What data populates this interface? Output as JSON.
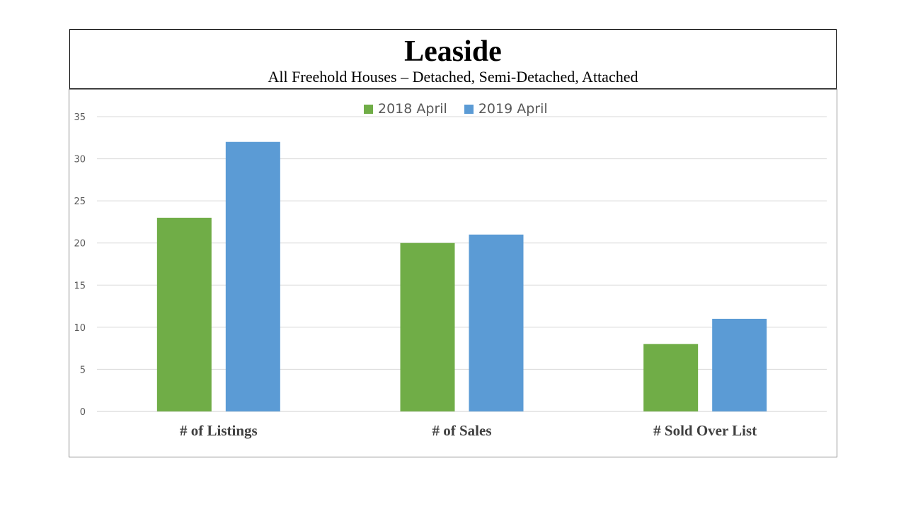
{
  "title": "Leaside",
  "subtitle": "All Freehold Houses – Detached, Semi-Detached, Attached",
  "legend": [
    {
      "label": "2018 April",
      "color": "#70ad47"
    },
    {
      "label": "2019 April",
      "color": "#5b9bd5"
    }
  ],
  "chart_data": {
    "type": "bar",
    "categories": [
      "# of Listings",
      "# of Sales",
      "# Sold Over List"
    ],
    "series": [
      {
        "name": "2018 April",
        "values": [
          23,
          20,
          8
        ],
        "color": "#70ad47"
      },
      {
        "name": "2019 April",
        "values": [
          32,
          21,
          11
        ],
        "color": "#5b9bd5"
      }
    ],
    "ylim": [
      0,
      35
    ],
    "yticks": [
      0,
      5,
      10,
      15,
      20,
      25,
      30,
      35
    ],
    "grid": true,
    "legend_position": "top"
  }
}
